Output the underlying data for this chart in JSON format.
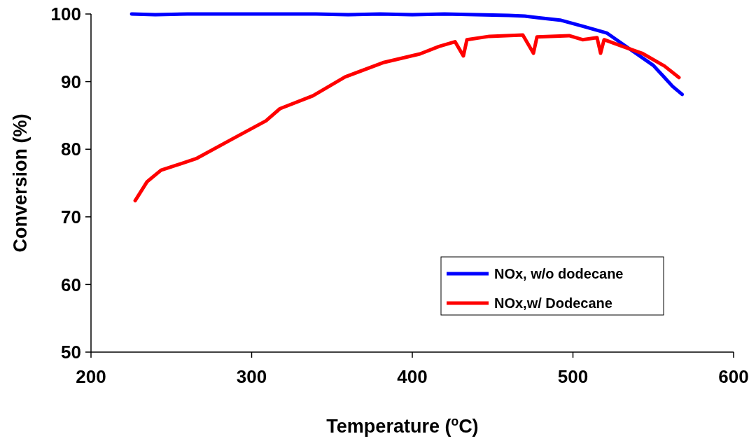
{
  "chart_data": {
    "type": "line",
    "xlabel": "Temperature ($^{o}$C)",
    "ylabel": "Conversion (%)",
    "xlim": [
      200,
      600
    ],
    "xticks": [
      200,
      300,
      400,
      500,
      600
    ],
    "ylim": [
      50,
      100
    ],
    "yticks": [
      50,
      60,
      70,
      80,
      90,
      100
    ],
    "legend": "bottom right",
    "marker": "none",
    "line_style": "solid",
    "series": [
      {
        "name": "NOx, w/o dodecane",
        "color": "#0000ff",
        "x": [
          225.3,
          240,
          260,
          280,
          300,
          320,
          340,
          360,
          380,
          400,
          420,
          440,
          460,
          470,
          480,
          492,
          506,
          521,
          535.5,
          550,
          557,
          562,
          568
        ],
        "values": [
          100,
          99.9,
          100,
          100,
          100,
          100,
          100,
          99.9,
          100,
          99.9,
          100,
          99.9,
          99.8,
          99.7,
          99.4,
          99.1,
          98.2,
          97.2,
          94.8,
          92.4,
          90.6,
          89.3,
          88.1
        ]
      },
      {
        "name": "NOx,w/ Dodecane",
        "color": "#ff0000",
        "x": [
          227.5,
          234.9,
          243.6,
          265.4,
          287.1,
          308.9,
          317.6,
          338.1,
          358.2,
          381.7,
          404.8,
          416.6,
          426.6,
          431.8,
          434,
          448,
          468.8,
          475.4,
          477.6,
          497.6,
          506,
          515,
          517.2,
          519.4,
          531,
          543,
          557,
          566
        ],
        "values": [
          72.4,
          75.2,
          76.9,
          78.6,
          81.4,
          84.2,
          86,
          87.9,
          90.7,
          92.8,
          94.1,
          95.2,
          95.9,
          93.8,
          96.2,
          96.7,
          96.9,
          94.2,
          96.6,
          96.8,
          96.2,
          96.5,
          94.2,
          96.2,
          95.2,
          94.2,
          92.3,
          90.6
        ]
      }
    ]
  }
}
